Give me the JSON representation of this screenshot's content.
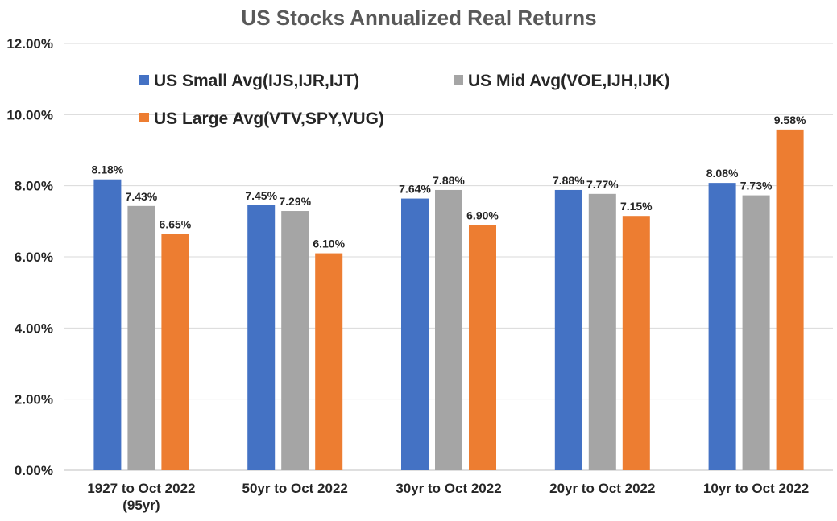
{
  "chart_data": {
    "type": "bar",
    "title": "US Stocks Annualized Real Returns",
    "xlabel": "",
    "ylabel": "",
    "ylim": [
      0,
      12
    ],
    "ytick_labels": [
      "0.00%",
      "2.00%",
      "4.00%",
      "6.00%",
      "8.00%",
      "10.00%",
      "12.00%"
    ],
    "categories": [
      [
        "1927 to Oct 2022",
        "(95yr)"
      ],
      [
        "50yr to Oct 2022"
      ],
      [
        "30yr to Oct 2022"
      ],
      [
        "20yr to Oct 2022"
      ],
      [
        "10yr to Oct 2022"
      ]
    ],
    "series": [
      {
        "name": "US Small Avg(IJS,IJR,IJT)",
        "color": "#4472c4",
        "values": [
          8.18,
          7.45,
          7.64,
          7.88,
          8.08
        ],
        "labels": [
          "8.18%",
          "7.45%",
          "7.64%",
          "7.88%",
          "8.08%"
        ]
      },
      {
        "name": "US Mid Avg(VOE,IJH,IJK)",
        "color": "#a5a5a5",
        "values": [
          7.43,
          7.29,
          7.88,
          7.77,
          7.73
        ],
        "labels": [
          "7.43%",
          "7.29%",
          "7.88%",
          "7.77%",
          "7.73%"
        ]
      },
      {
        "name": "US Large Avg(VTV,SPY,VUG)",
        "color": "#ed7d31",
        "values": [
          6.65,
          6.1,
          6.9,
          7.15,
          9.58
        ],
        "labels": [
          "6.65%",
          "6.10%",
          "6.90%",
          "7.15%",
          "9.58%"
        ]
      }
    ],
    "grid": true,
    "legend_position": "top-left"
  }
}
